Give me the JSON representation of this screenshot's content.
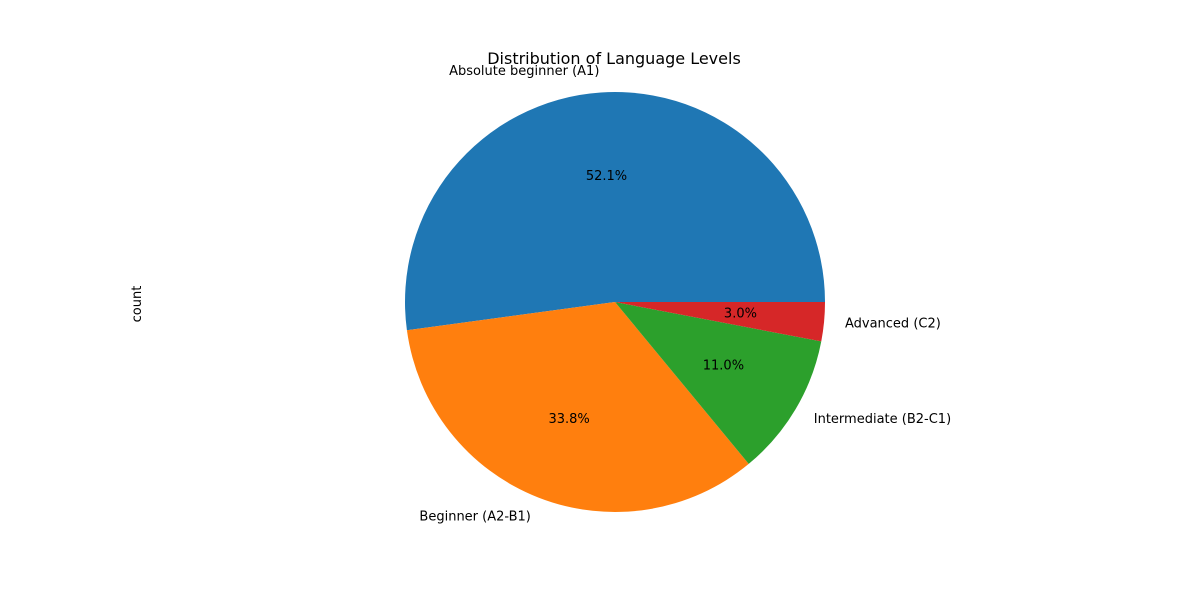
{
  "chart_data": {
    "type": "pie",
    "title": "Distribution of Language Levels",
    "ylabel": "count",
    "categories": [
      "Absolute beginner (A1)",
      "Beginner (A2-B1)",
      "Intermediate (B2-C1)",
      "Advanced (C2)"
    ],
    "values": [
      52.1,
      33.8,
      11.0,
      3.0
    ],
    "percent_labels": [
      "52.1%",
      "33.8%",
      "11.0%",
      "3.0%"
    ],
    "colors": [
      "#1f77b4",
      "#ff7f0e",
      "#2ca02c",
      "#d62728"
    ],
    "start_angle_deg": 0,
    "direction": "counterclockwise",
    "legend": "none"
  }
}
